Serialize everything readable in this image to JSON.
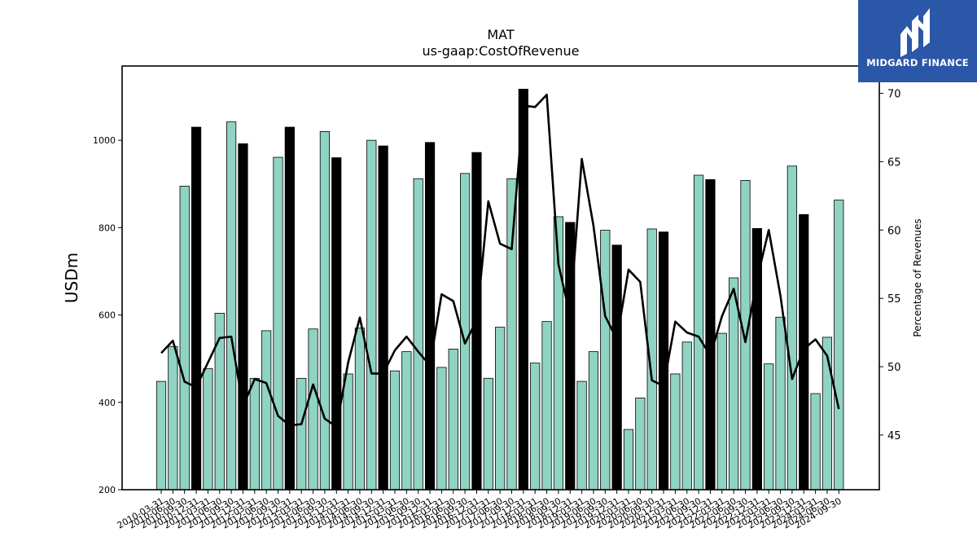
{
  "chart_data": {
    "type": "bar",
    "title": "MAT",
    "subtitle": "us-gaap:CostOfRevenue",
    "ylabel": "USDm",
    "ylabel_right": "Percentage of Revenues",
    "ylim": [
      200,
      1170
    ],
    "ylim_right": [
      41,
      72
    ],
    "yticks": [
      200,
      400,
      600,
      800,
      1000
    ],
    "yticks_right": [
      45,
      50,
      55,
      60,
      65,
      70
    ],
    "bar_colors": {
      "quarter": "#8fd3c3",
      "q4": "#000000"
    },
    "line_color": "#000000",
    "categories": [
      "2010-03-31",
      "2010-06-30",
      "2010-09-30",
      "2010-12-31",
      "2011-03-31",
      "2011-06-30",
      "2011-09-30",
      "2011-12-31",
      "2012-03-31",
      "2012-06-30",
      "2012-09-30",
      "2012-12-31",
      "2013-03-31",
      "2013-06-30",
      "2013-09-30",
      "2013-12-31",
      "2014-03-31",
      "2014-06-30",
      "2014-09-30",
      "2014-12-31",
      "2015-03-31",
      "2015-06-30",
      "2015-09-30",
      "2015-12-31",
      "2016-03-31",
      "2016-06-30",
      "2016-09-30",
      "2016-12-31",
      "2017-03-31",
      "2017-06-30",
      "2017-09-30",
      "2017-12-31",
      "2018-03-31",
      "2018-06-30",
      "2018-09-30",
      "2018-12-31",
      "2019-03-31",
      "2019-06-30",
      "2019-09-30",
      "2019-12-31",
      "2020-03-31",
      "2020-06-30",
      "2020-09-30",
      "2020-12-31",
      "2021-03-31",
      "2021-06-30",
      "2021-09-30",
      "2021-12-31",
      "2022-03-31",
      "2022-06-30",
      "2022-09-30",
      "2022-12-31",
      "2023-03-31",
      "2023-06-30",
      "2023-09-30",
      "2023-12-31",
      "2024-03-31",
      "2024-06-30",
      "2024-09-30"
    ],
    "values": [
      448,
      528,
      895,
      1030,
      477,
      604,
      1042,
      992,
      455,
      564,
      961,
      1030,
      455,
      568,
      1020,
      960,
      465,
      570,
      1000,
      987,
      472,
      516,
      912,
      995,
      480,
      522,
      924,
      972,
      455,
      572,
      912,
      1117,
      490,
      585,
      825,
      812,
      448,
      516,
      794,
      760,
      338,
      410,
      797,
      790,
      465,
      538,
      920,
      910,
      558,
      685,
      908,
      798,
      488,
      595,
      941,
      830,
      420,
      549,
      863
    ],
    "series": [
      {
        "values": [
          51.0,
          51.9,
          48.9,
          48.5,
          50.3,
          52.1,
          52.2,
          47.1,
          49.1,
          48.8,
          46.4,
          45.7,
          45.8,
          48.7,
          46.2,
          45.6,
          50.3,
          53.6,
          49.5,
          49.5,
          51.2,
          52.2,
          51.1,
          50.1,
          55.3,
          54.8,
          51.7,
          53.4,
          62.1,
          59.0,
          58.6,
          69.1,
          69.0,
          69.9,
          57.5,
          53.7,
          65.2,
          60.3,
          53.7,
          52.0,
          57.1,
          56.2,
          49.0,
          48.6,
          53.3,
          52.5,
          52.2,
          50.8,
          53.7,
          55.7,
          51.8,
          56.4,
          60.0,
          55.2,
          49.1,
          51.3,
          52.0,
          50.8,
          46.9
        ]
      }
    ],
    "brand": "MIDGARD FINANCE"
  }
}
